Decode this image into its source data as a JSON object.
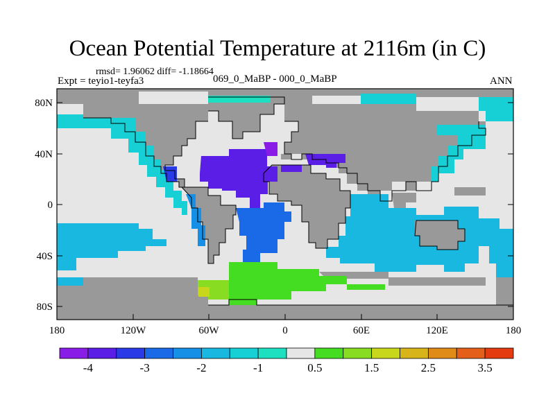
{
  "title": "Ocean Potential Temperature at 2116m (in C)",
  "stats_line": "rmsd= 1.96062  diff= -1.18664",
  "expt_label": "Expt = teyio1-teyfa3",
  "comparison_label": "069_0_MaBP - 000_0_MaBP",
  "season_label": "ANN",
  "map": {
    "lat_ticks": [
      "80N",
      "40N",
      "0",
      "40S",
      "80S"
    ],
    "lon_ticks": [
      "180",
      "120W",
      "60W",
      "0",
      "60E",
      "120E",
      "180"
    ]
  },
  "colors": {
    "land": "#999999",
    "neutral": "#e6e6e6",
    "coastline": "#000000"
  },
  "colorbar": {
    "colors": [
      "#8a1ce8",
      "#5a1ee6",
      "#2a3ae6",
      "#1a6ae8",
      "#1690e6",
      "#18b8e0",
      "#16d0d6",
      "#1ce0c0",
      "#e6e6e6",
      "#44dd22",
      "#88dd22",
      "#c8d61c",
      "#d6b41a",
      "#e08a18",
      "#e4601a",
      "#e43c10"
    ],
    "labels": [
      "-4",
      "-3",
      "-2",
      "-1",
      "0.5",
      "1.5",
      "2.5",
      "3.5"
    ]
  }
}
